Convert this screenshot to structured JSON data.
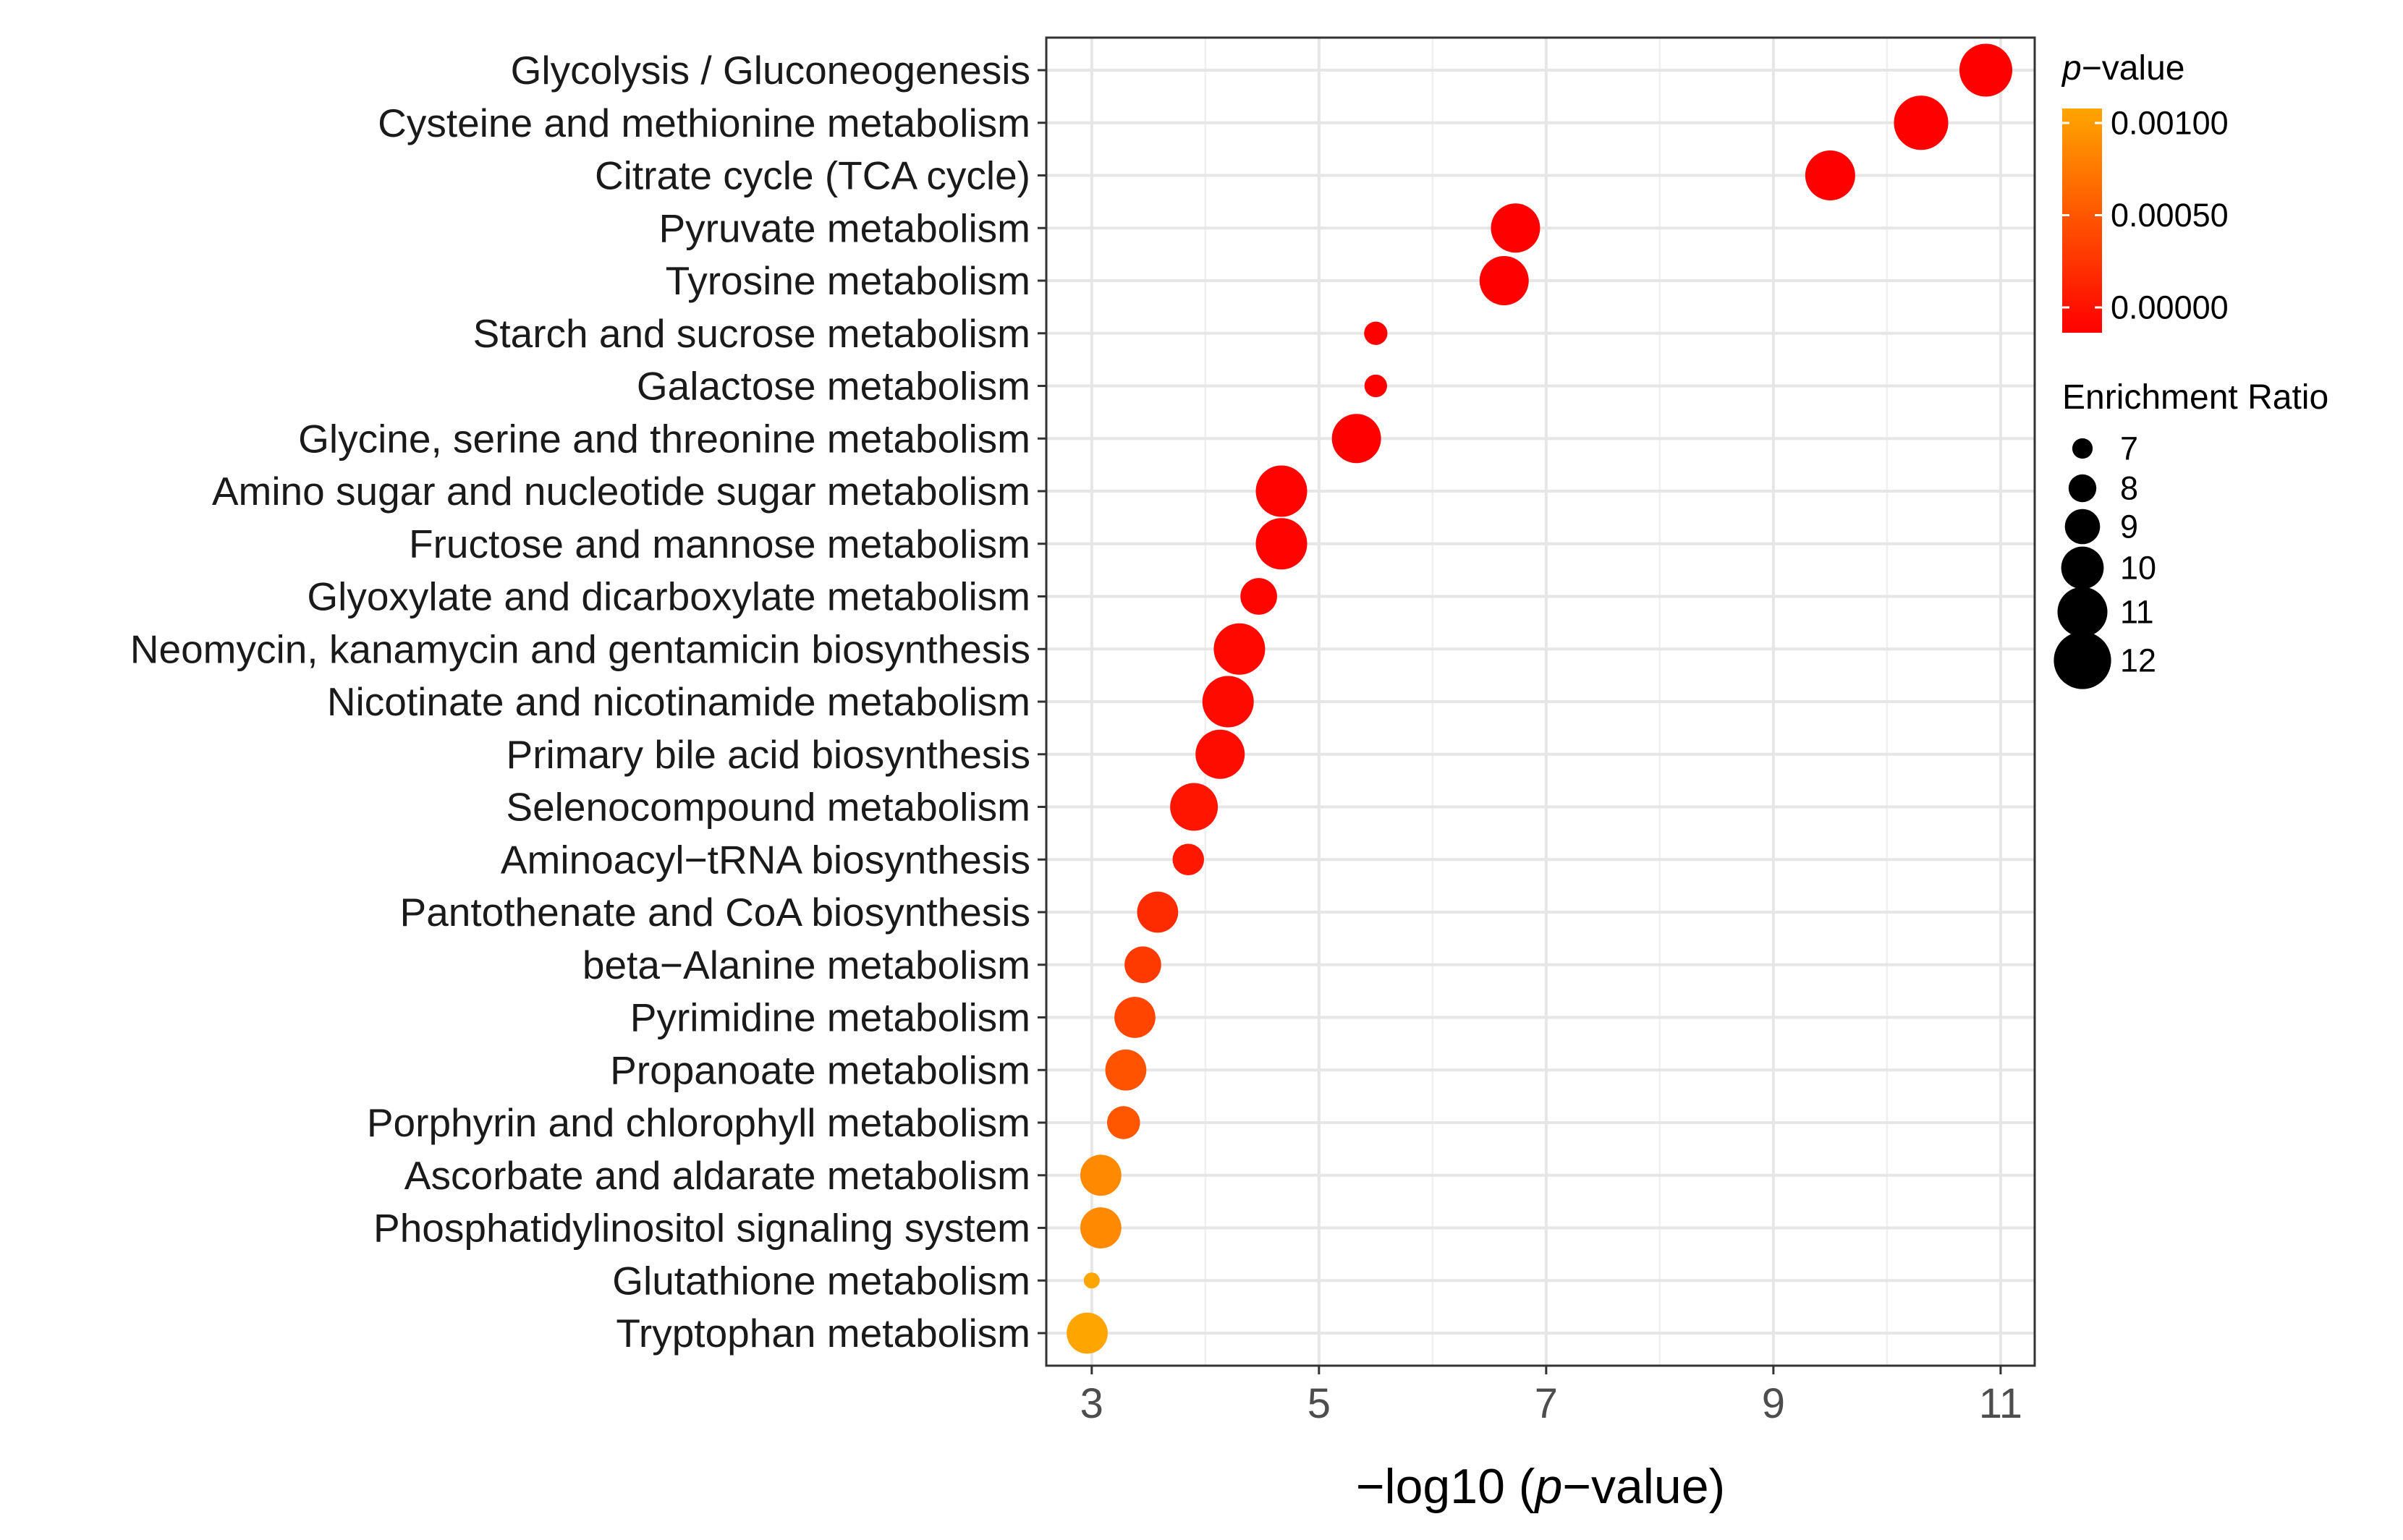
{
  "chart_data": {
    "type": "scatter",
    "title": "",
    "xlabel_prefix": "−log10 (",
    "xlabel_italic": "p",
    "xlabel_suffix": "−value)",
    "ylabel": "",
    "xlim": [
      2.6,
      11.3
    ],
    "xticks": [
      3,
      5,
      7,
      9,
      11
    ],
    "grid": true,
    "legend_position": "right",
    "points": [
      {
        "pathway": "Glycolysis / Gluconeogenesis",
        "x": 10.87,
        "ratio": 11.4,
        "p": 0.0
      },
      {
        "pathway": "Cysteine and methionine metabolism",
        "x": 10.3,
        "ratio": 11.6,
        "p": 0.0
      },
      {
        "pathway": "Citrate cycle (TCA cycle)",
        "x": 9.5,
        "ratio": 11.0,
        "p": 0.0
      },
      {
        "pathway": "Pyruvate metabolism",
        "x": 6.73,
        "ratio": 10.9,
        "p": 0.0
      },
      {
        "pathway": "Tyrosine metabolism",
        "x": 6.63,
        "ratio": 10.9,
        "p": 0.0
      },
      {
        "pathway": "Starch and sucrose metabolism",
        "x": 5.5,
        "ratio": 7.4,
        "p": 0.0
      },
      {
        "pathway": "Galactose metabolism",
        "x": 5.5,
        "ratio": 7.3,
        "p": 0.0
      },
      {
        "pathway": "Glycine, serine and threonine metabolism",
        "x": 5.33,
        "ratio": 10.9,
        "p": 0.0
      },
      {
        "pathway": "Amino sugar and nucleotide sugar metabolism",
        "x": 4.67,
        "ratio": 11.2,
        "p": 2e-05
      },
      {
        "pathway": "Fructose and mannose metabolism",
        "x": 4.67,
        "ratio": 11.2,
        "p": 2e-05
      },
      {
        "pathway": "Glyoxylate and dicarboxylate metabolism",
        "x": 4.47,
        "ratio": 9.2,
        "p": 3e-05
      },
      {
        "pathway": "Neomycin, kanamycin and gentamicin biosynthesis",
        "x": 4.3,
        "ratio": 11.2,
        "p": 5e-05
      },
      {
        "pathway": "Nicotinate and nicotinamide metabolism",
        "x": 4.2,
        "ratio": 11.2,
        "p": 6e-05
      },
      {
        "pathway": "Primary bile acid biosynthesis",
        "x": 4.13,
        "ratio": 10.9,
        "p": 7e-05
      },
      {
        "pathway": "Selenocompound metabolism",
        "x": 3.9,
        "ratio": 10.7,
        "p": 0.00013
      },
      {
        "pathway": "Aminoacyl−tRNA biosynthesis",
        "x": 3.85,
        "ratio": 8.5,
        "p": 0.00014
      },
      {
        "pathway": "Pantothenate and CoA biosynthesis",
        "x": 3.58,
        "ratio": 9.8,
        "p": 0.00026
      },
      {
        "pathway": "beta−Alanine metabolism",
        "x": 3.45,
        "ratio": 9.2,
        "p": 0.00035
      },
      {
        "pathway": "Pyrimidine metabolism",
        "x": 3.38,
        "ratio": 9.8,
        "p": 0.00042
      },
      {
        "pathway": "Propanoate metabolism",
        "x": 3.3,
        "ratio": 9.8,
        "p": 0.0005
      },
      {
        "pathway": "Porphyrin and chlorophyll metabolism",
        "x": 3.28,
        "ratio": 8.7,
        "p": 0.00052
      },
      {
        "pathway": "Ascorbate and aldarate metabolism",
        "x": 3.08,
        "ratio": 9.8,
        "p": 0.00083
      },
      {
        "pathway": "Phosphatidylinositol signaling system",
        "x": 3.08,
        "ratio": 9.8,
        "p": 0.00083
      },
      {
        "pathway": "Glutathione metabolism",
        "x": 3.0,
        "ratio": 6.4,
        "p": 0.001
      },
      {
        "pathway": "Tryptophan metabolism",
        "x": 2.96,
        "ratio": 9.8,
        "p": 0.001
      }
    ],
    "color_legend": {
      "title_italic": "p",
      "title_suffix": "−value",
      "ticks": [
        {
          "value": 0.001,
          "label": "0.00100"
        },
        {
          "value": 0.0005,
          "label": "0.00050"
        },
        {
          "value": 0.0,
          "label": "0.00000"
        }
      ],
      "range": [
        0.0,
        0.001
      ],
      "color_low": "#FF0000",
      "color_high": "#FFA500"
    },
    "size_legend": {
      "title": "Enrichment Ratio",
      "entries": [
        {
          "value": 7,
          "label": "7"
        },
        {
          "value": 8,
          "label": "8"
        },
        {
          "value": 9,
          "label": "9"
        },
        {
          "value": 10,
          "label": "10"
        },
        {
          "value": 11,
          "label": "11"
        },
        {
          "value": 12,
          "label": "12"
        }
      ]
    }
  }
}
